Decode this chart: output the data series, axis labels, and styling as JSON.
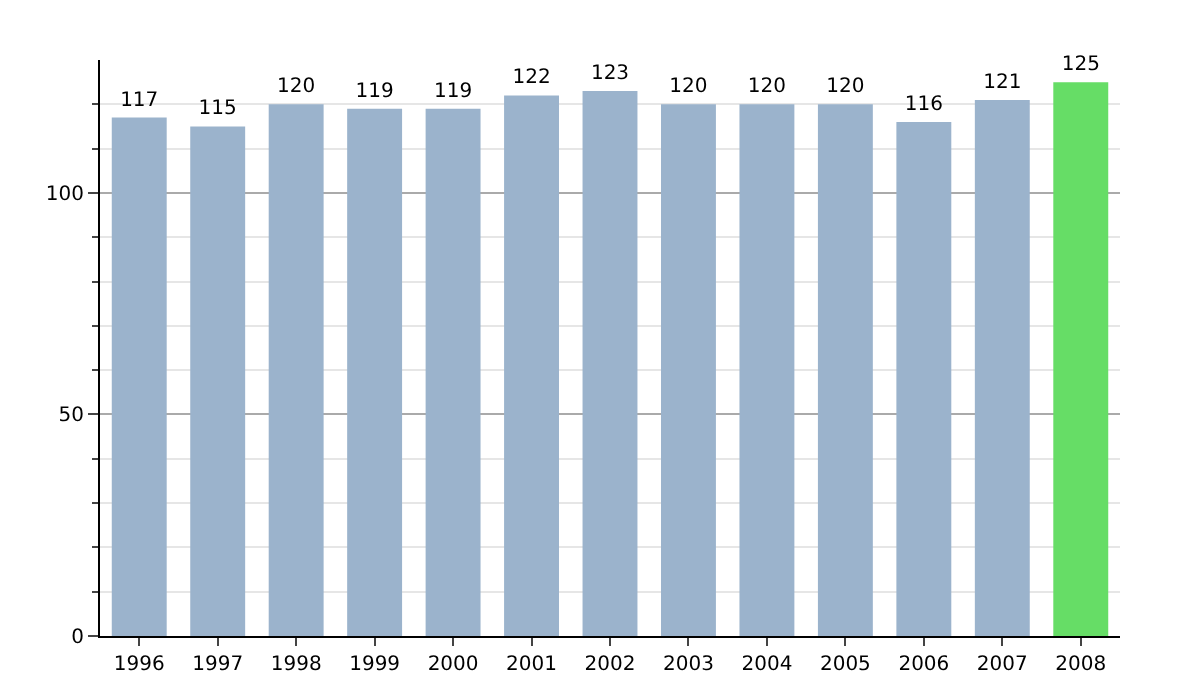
{
  "chart_data": {
    "type": "bar",
    "categories": [
      "1996",
      "1997",
      "1998",
      "1999",
      "2000",
      "2001",
      "2002",
      "2003",
      "2004",
      "2005",
      "2006",
      "2007",
      "2008"
    ],
    "values": [
      117,
      115,
      120,
      119,
      119,
      122,
      123,
      120,
      120,
      120,
      116,
      121,
      125
    ],
    "colors": [
      "#9bb3cc",
      "#9bb3cc",
      "#9bb3cc",
      "#9bb3cc",
      "#9bb3cc",
      "#9bb3cc",
      "#9bb3cc",
      "#9bb3cc",
      "#9bb3cc",
      "#9bb3cc",
      "#9bb3cc",
      "#9bb3cc",
      "#66dd66"
    ],
    "ylim": [
      0,
      130
    ],
    "yticks": [
      0,
      {
        "value": 10,
        "label": null
      },
      {
        "value": 20,
        "label": null
      },
      {
        "value": 30,
        "label": null
      },
      {
        "value": 40,
        "label": null
      },
      50,
      {
        "value": 60,
        "label": null
      },
      {
        "value": 70,
        "label": null
      },
      {
        "value": 80,
        "label": null
      },
      {
        "value": 90,
        "label": null
      },
      100,
      {
        "value": 110,
        "label": null
      },
      {
        "value": 120,
        "label": null
      }
    ],
    "grid": "y",
    "data_labels": true,
    "legend": false
  }
}
